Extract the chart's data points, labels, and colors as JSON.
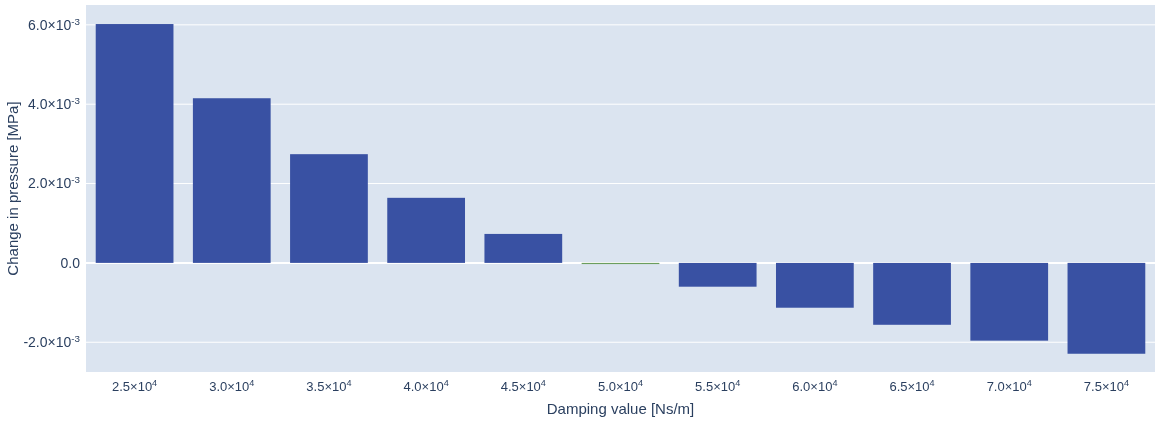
{
  "chart_data": {
    "type": "bar",
    "xlabel": "Damping value [Ns/m]",
    "ylabel": "Change in pressure [MPa]",
    "categories": [
      "2.5×10$^{4}$",
      "3.0×10$^{4}$",
      "3.5×10$^{4}$",
      "4.0×10$^{4}$",
      "4.5×10$^{4}$",
      "5.0×10$^{4}$",
      "5.5×10$^{4}$",
      "6.0×10$^{4}$",
      "6.5×10$^{4}$",
      "7.0×10$^{4}$",
      "7.5×10$^{4}$"
    ],
    "values": [
      0.00602,
      0.00415,
      0.00274,
      0.00164,
      0.00073,
      -3e-05,
      -0.0006,
      -0.00113,
      -0.00156,
      -0.00196,
      -0.00229
    ],
    "colors": [
      "#3951a3",
      "#3951a3",
      "#3951a3",
      "#3951a3",
      "#3951a3",
      "#6b9e5e",
      "#3951a3",
      "#3951a3",
      "#3951a3",
      "#3951a3",
      "#3951a3"
    ],
    "ylim": [
      -0.00275,
      0.0065
    ],
    "yticks": [
      {
        "value": -0.002,
        "label": "-2.0×10$^{-3}$"
      },
      {
        "value": 0,
        "label": "0.0"
      },
      {
        "value": 0.002,
        "label": "2.0×10$^{-3}$"
      },
      {
        "value": 0.004,
        "label": "4.0×10$^{-3}$"
      },
      {
        "value": 0.006,
        "label": "6.0×10$^{-3}$"
      }
    ],
    "grid": "y"
  }
}
